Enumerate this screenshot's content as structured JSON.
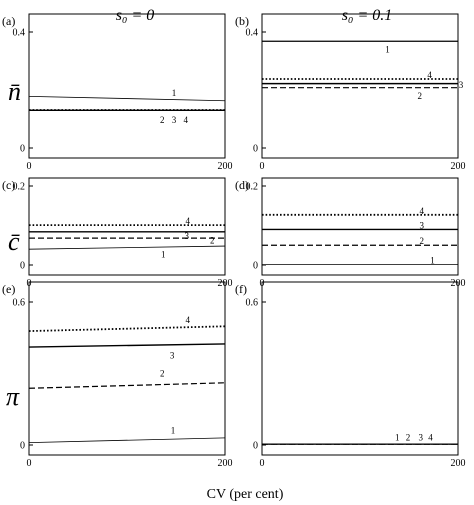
{
  "figure": {
    "column_headers": [
      "s₀ = 0",
      "s₀ = 0.1"
    ],
    "row_symbols": [
      "n̄",
      "c̄",
      "π"
    ],
    "xlabel": "CV (per cent)"
  },
  "chart_data": [
    {
      "type": "line",
      "panel": "(a)",
      "row": 0,
      "col": 0,
      "x": [
        0,
        200
      ],
      "xlim": [
        0,
        200
      ],
      "ylim": [
        0,
        0.4
      ],
      "xticks": [
        "0",
        "200"
      ],
      "yticks": [
        "0",
        "0.4"
      ],
      "series": [
        {
          "name": "1",
          "y": [
            0.178,
            0.163
          ],
          "style": "solid",
          "width": 0.8
        },
        {
          "name": "2",
          "y": [
            0.13,
            0.13
          ],
          "style": "dashed",
          "width": 1.2
        },
        {
          "name": "3",
          "y": [
            0.13,
            0.13
          ],
          "style": "solid",
          "width": 1.4
        },
        {
          "name": "4",
          "y": [
            0.131,
            0.131
          ],
          "style": "dotted",
          "width": 1.8
        }
      ],
      "labels": [
        {
          "text": "1",
          "x": 148,
          "y": 0.19
        },
        {
          "text": "2",
          "x": 136,
          "y": 0.097
        },
        {
          "text": "3",
          "x": 148,
          "y": 0.097
        },
        {
          "text": "4",
          "x": 160,
          "y": 0.097
        }
      ]
    },
    {
      "type": "line",
      "panel": "(b)",
      "row": 0,
      "col": 1,
      "x": [
        0,
        200
      ],
      "xlim": [
        0,
        200
      ],
      "ylim": [
        0,
        0.4
      ],
      "xticks": [
        "0",
        "200"
      ],
      "yticks": [
        "0",
        "0.4"
      ],
      "series": [
        {
          "name": "1",
          "y": [
            0.368,
            0.368
          ],
          "style": "solid",
          "width": 1.2
        },
        {
          "name": "4",
          "y": [
            0.238,
            0.238
          ],
          "style": "dotted",
          "width": 1.8
        },
        {
          "name": "3",
          "y": [
            0.222,
            0.222
          ],
          "style": "solid",
          "width": 1.4
        },
        {
          "name": "2",
          "y": [
            0.208,
            0.208
          ],
          "style": "dashed",
          "width": 1.2
        }
      ],
      "labels": [
        {
          "text": "1",
          "x": 128,
          "y": 0.34
        },
        {
          "text": "4",
          "x": 171,
          "y": 0.252
        },
        {
          "text": "2",
          "x": 161,
          "y": 0.18
        },
        {
          "text": "3",
          "x": 203,
          "y": 0.218
        }
      ]
    },
    {
      "type": "line",
      "panel": "(c)",
      "row": 1,
      "col": 0,
      "x": [
        0,
        200
      ],
      "xlim": [
        0,
        200
      ],
      "ylim": [
        0,
        0.2
      ],
      "xticks": [
        "0",
        "200"
      ],
      "yticks": [
        "0",
        "0.2"
      ],
      "series": [
        {
          "name": "4",
          "y": [
            0.101,
            0.101
          ],
          "style": "dotted",
          "width": 1.8
        },
        {
          "name": "3",
          "y": [
            0.084,
            0.084
          ],
          "style": "solid",
          "width": 1.4
        },
        {
          "name": "2",
          "y": [
            0.068,
            0.068
          ],
          "style": "dashed",
          "width": 1.2
        },
        {
          "name": "1",
          "y": [
            0.04,
            0.048
          ],
          "style": "solid",
          "width": 0.8
        }
      ],
      "labels": [
        {
          "text": "4",
          "x": 162,
          "y": 0.111
        },
        {
          "text": "3",
          "x": 161,
          "y": 0.074
        },
        {
          "text": "2",
          "x": 187,
          "y": 0.062
        },
        {
          "text": "1",
          "x": 137,
          "y": 0.027
        }
      ]
    },
    {
      "type": "line",
      "panel": "(d)",
      "row": 1,
      "col": 1,
      "x": [
        0,
        200
      ],
      "xlim": [
        0,
        200
      ],
      "ylim": [
        0,
        0.2
      ],
      "xticks": [
        "0",
        "200"
      ],
      "yticks": [
        "0",
        "0.2"
      ],
      "series": [
        {
          "name": "4",
          "y": [
            0.127,
            0.127
          ],
          "style": "dotted",
          "width": 1.8
        },
        {
          "name": "3",
          "y": [
            0.09,
            0.09
          ],
          "style": "solid",
          "width": 1.4
        },
        {
          "name": "2",
          "y": [
            0.05,
            0.05
          ],
          "style": "dashed",
          "width": 1.2
        },
        {
          "name": "1",
          "y": [
            0.001,
            0.001
          ],
          "style": "solid",
          "width": 0.8
        }
      ],
      "labels": [
        {
          "text": "4",
          "x": 163,
          "y": 0.137
        },
        {
          "text": "3",
          "x": 163,
          "y": 0.1
        },
        {
          "text": "2",
          "x": 163,
          "y": 0.061
        },
        {
          "text": "1",
          "x": 174,
          "y": 0.011
        }
      ]
    },
    {
      "type": "line",
      "panel": "(e)",
      "row": 2,
      "col": 0,
      "x": [
        0,
        200
      ],
      "xlim": [
        0,
        200
      ],
      "ylim": [
        0,
        0.6
      ],
      "xticks": [
        "0",
        "200"
      ],
      "yticks": [
        "0",
        "0.6"
      ],
      "series": [
        {
          "name": "4",
          "y": [
            0.478,
            0.498
          ],
          "style": "dotted",
          "width": 1.8
        },
        {
          "name": "3",
          "y": [
            0.411,
            0.424
          ],
          "style": "solid",
          "width": 1.4
        },
        {
          "name": "2",
          "y": [
            0.238,
            0.261
          ],
          "style": "dashed",
          "width": 1.2
        },
        {
          "name": "1",
          "y": [
            0.01,
            0.03
          ],
          "style": "solid",
          "width": 0.8
        }
      ],
      "labels": [
        {
          "text": "4",
          "x": 162,
          "y": 0.525
        },
        {
          "text": "3",
          "x": 146,
          "y": 0.375
        },
        {
          "text": "2",
          "x": 136,
          "y": 0.3
        },
        {
          "text": "1",
          "x": 147,
          "y": 0.06
        }
      ]
    },
    {
      "type": "line",
      "panel": "(f)",
      "row": 2,
      "col": 1,
      "x": [
        0,
        200
      ],
      "xlim": [
        0,
        200
      ],
      "ylim": [
        0,
        0.6
      ],
      "xticks": [
        "0",
        "200"
      ],
      "yticks": [
        "0",
        "0.6"
      ],
      "series": [
        {
          "name": "1",
          "y": [
            0.003,
            0.003
          ],
          "style": "solid",
          "width": 0.9
        },
        {
          "name": "2",
          "y": [
            0.003,
            0.003
          ],
          "style": "dashed",
          "width": 1.0
        },
        {
          "name": "3",
          "y": [
            0.004,
            0.004
          ],
          "style": "solid",
          "width": 1.2
        },
        {
          "name": "4",
          "y": [
            0.004,
            0.004
          ],
          "style": "dotted",
          "width": 1.2
        }
      ],
      "labels": [
        {
          "text": "1",
          "x": 138,
          "y": 0.032
        },
        {
          "text": "2",
          "x": 149,
          "y": 0.032
        },
        {
          "text": "3",
          "x": 162,
          "y": 0.032
        },
        {
          "text": "4",
          "x": 172,
          "y": 0.032
        }
      ]
    }
  ]
}
